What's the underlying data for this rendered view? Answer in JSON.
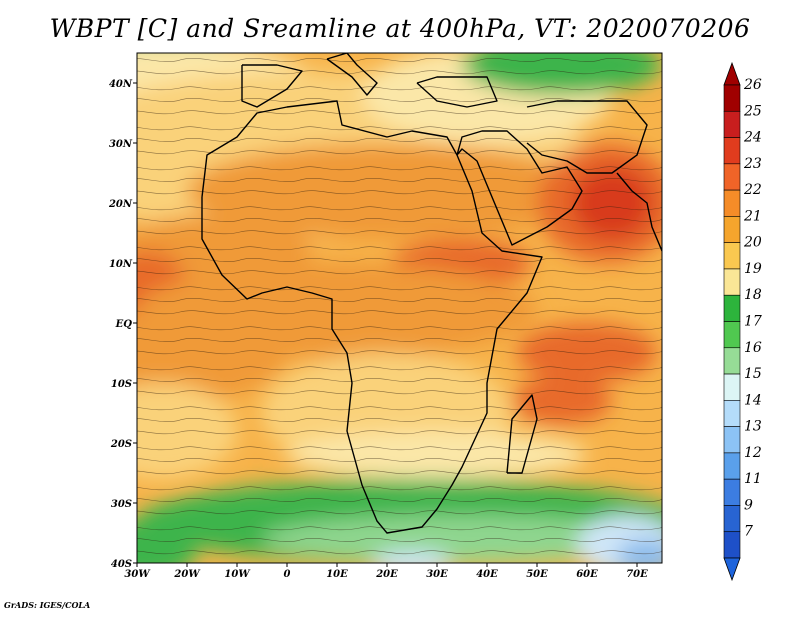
{
  "title": "WBPT [C] and Sreamline at 400hPa, VT: 2020070206",
  "credit": "GrADS: IGES/COLA",
  "map": {
    "lon_range": [
      -30,
      75
    ],
    "lat_range": [
      -40,
      45
    ],
    "lon_ticks": [
      {
        "value": -30,
        "label": "30W"
      },
      {
        "value": -20,
        "label": "20W"
      },
      {
        "value": -10,
        "label": "10W"
      },
      {
        "value": 0,
        "label": "0"
      },
      {
        "value": 10,
        "label": "10E"
      },
      {
        "value": 20,
        "label": "20E"
      },
      {
        "value": 30,
        "label": "30E"
      },
      {
        "value": 40,
        "label": "40E"
      },
      {
        "value": 50,
        "label": "50E"
      },
      {
        "value": 60,
        "label": "60E"
      },
      {
        "value": 70,
        "label": "70E"
      }
    ],
    "lat_ticks": [
      {
        "value": 40,
        "label": "40N"
      },
      {
        "value": 30,
        "label": "30N"
      },
      {
        "value": 20,
        "label": "20N"
      },
      {
        "value": 10,
        "label": "10N"
      },
      {
        "value": 0,
        "label": "EQ"
      },
      {
        "value": -10,
        "label": "10S"
      },
      {
        "value": -20,
        "label": "20S"
      },
      {
        "value": -30,
        "label": "30S"
      },
      {
        "value": -40,
        "label": "40S"
      }
    ]
  },
  "colorbar": {
    "levels": [
      "26",
      "25",
      "24",
      "23",
      "22",
      "21",
      "20",
      "19",
      "18",
      "17",
      "16",
      "15",
      "14",
      "13",
      "12",
      "11",
      "9",
      "7"
    ],
    "colors": [
      "#a00000",
      "#c81e1e",
      "#e03c1e",
      "#f06428",
      "#f58c28",
      "#f5a52d",
      "#fac850",
      "#fae696",
      "#2db43c",
      "#50c850",
      "#96dc96",
      "#dcf5f5",
      "#b4dcfa",
      "#8cc3f5",
      "#5aa0eb",
      "#3c7de1",
      "#2864d2",
      "#1e50c8"
    ],
    "top_color": "#a00000",
    "bottom_color": "#1e64dc"
  },
  "field_colors": {
    "deep_orange": "#e86a2c",
    "orange": "#f09a38",
    "light_orange": "#f7b34a",
    "yellow": "#fad27a",
    "pale_yellow": "#fbe7a8",
    "green": "#3cb44b",
    "light_green": "#8fd68f",
    "pale_green": "#c8ecc0",
    "pale_blue": "#cfe6f8",
    "blue": "#8cbcec",
    "red": "#d83a1e"
  }
}
